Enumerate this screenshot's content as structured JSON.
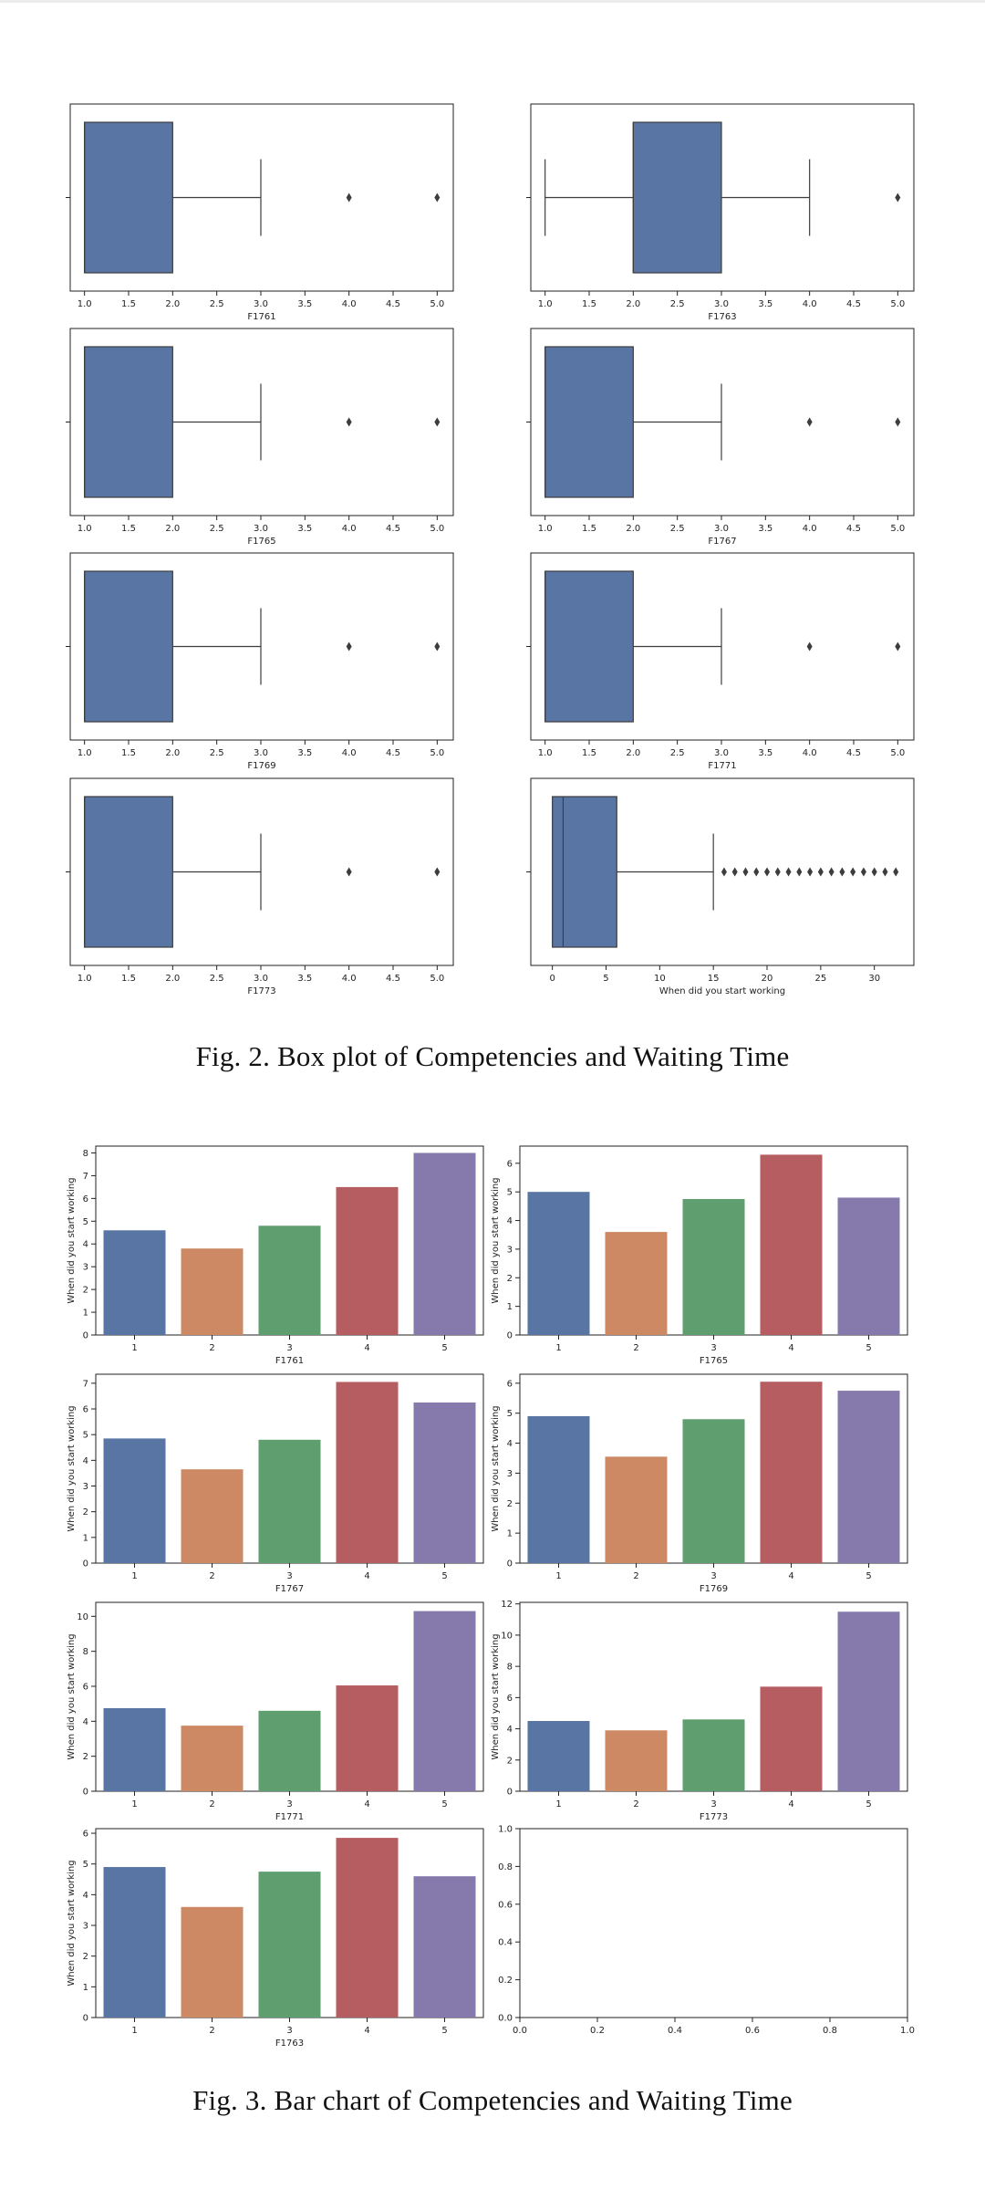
{
  "figure2": {
    "caption": "Fig. 2.  Box plot of Competencies and Waiting Time",
    "box_color": "#5975a4",
    "chart_data": [
      {
        "type": "box",
        "xlabel": "F1761",
        "xlim": [
          0.9,
          5.1
        ],
        "ticks": [
          "1.0",
          "1.5",
          "2.0",
          "2.5",
          "3.0",
          "3.5",
          "4.0",
          "4.5",
          "5.0"
        ],
        "q1": 1.0,
        "q3": 2.0,
        "median": 1.0,
        "whisker_low": 1.0,
        "whisker_high": 3.0,
        "outliers": [
          4,
          5
        ]
      },
      {
        "type": "box",
        "xlabel": "F1763",
        "xlim": [
          0.9,
          5.1
        ],
        "ticks": [
          "1.0",
          "1.5",
          "2.0",
          "2.5",
          "3.0",
          "3.5",
          "4.0",
          "4.5",
          "5.0"
        ],
        "q1": 2.0,
        "q3": 3.0,
        "median": 2.0,
        "whisker_low": 1.0,
        "whisker_high": 4.0,
        "outliers": [
          5
        ]
      },
      {
        "type": "box",
        "xlabel": "F1765",
        "xlim": [
          0.9,
          5.1
        ],
        "ticks": [
          "1.0",
          "1.5",
          "2.0",
          "2.5",
          "3.0",
          "3.5",
          "4.0",
          "4.5",
          "5.0"
        ],
        "q1": 1.0,
        "q3": 2.0,
        "median": 1.0,
        "whisker_low": 1.0,
        "whisker_high": 3.0,
        "outliers": [
          4,
          5
        ]
      },
      {
        "type": "box",
        "xlabel": "F1767",
        "xlim": [
          0.9,
          5.1
        ],
        "ticks": [
          "1.0",
          "1.5",
          "2.0",
          "2.5",
          "3.0",
          "3.5",
          "4.0",
          "4.5",
          "5.0"
        ],
        "q1": 1.0,
        "q3": 2.0,
        "median": 1.0,
        "whisker_low": 1.0,
        "whisker_high": 3.0,
        "outliers": [
          4,
          5
        ]
      },
      {
        "type": "box",
        "xlabel": "F1769",
        "xlim": [
          0.9,
          5.1
        ],
        "ticks": [
          "1.0",
          "1.5",
          "2.0",
          "2.5",
          "3.0",
          "3.5",
          "4.0",
          "4.5",
          "5.0"
        ],
        "q1": 1.0,
        "q3": 2.0,
        "median": 1.0,
        "whisker_low": 1.0,
        "whisker_high": 3.0,
        "outliers": [
          4,
          5
        ]
      },
      {
        "type": "box",
        "xlabel": "F1771",
        "xlim": [
          0.9,
          5.1
        ],
        "ticks": [
          "1.0",
          "1.5",
          "2.0",
          "2.5",
          "3.0",
          "3.5",
          "4.0",
          "4.5",
          "5.0"
        ],
        "q1": 1.0,
        "q3": 2.0,
        "median": 1.0,
        "whisker_low": 1.0,
        "whisker_high": 3.0,
        "outliers": [
          4,
          5
        ]
      },
      {
        "type": "box",
        "xlabel": "F1773",
        "xlim": [
          0.9,
          5.1
        ],
        "ticks": [
          "1.0",
          "1.5",
          "2.0",
          "2.5",
          "3.0",
          "3.5",
          "4.0",
          "4.5",
          "5.0"
        ],
        "q1": 1.0,
        "q3": 2.0,
        "median": 1.0,
        "whisker_low": 1.0,
        "whisker_high": 3.0,
        "outliers": [
          4,
          5
        ]
      },
      {
        "type": "box",
        "xlabel": "When did you start working",
        "xlim": [
          -1.5,
          33
        ],
        "tick_values": [
          0,
          5,
          10,
          15,
          20,
          25,
          30
        ],
        "ticks": [
          "0",
          "5",
          "10",
          "15",
          "20",
          "25",
          "30"
        ],
        "q1": 0,
        "q3": 6,
        "median": 1,
        "whisker_low": 0,
        "whisker_high": 15,
        "outliers": [
          16,
          17,
          18,
          19,
          20,
          21,
          22,
          23,
          24,
          25,
          26,
          27,
          28,
          29,
          30,
          31,
          32
        ]
      }
    ]
  },
  "figure3": {
    "caption": "Fig. 3.  Bar chart of Competencies and Waiting Time",
    "bar_colors": [
      "#5975a4",
      "#cc8963",
      "#5f9e6e",
      "#b55d60",
      "#857aab"
    ],
    "chart_data": [
      {
        "type": "bar",
        "xlabel": "F1761",
        "ylabel": "When did you start working",
        "categories": [
          "1",
          "2",
          "3",
          "4",
          "5"
        ],
        "values": [
          4.6,
          3.8,
          4.8,
          6.5,
          8.0
        ],
        "ylim": [
          0,
          8.3
        ],
        "yticks": [
          "0",
          "1",
          "2",
          "3",
          "4",
          "5",
          "6",
          "7",
          "8"
        ]
      },
      {
        "type": "bar",
        "xlabel": "F1765",
        "ylabel": "When did you start working",
        "categories": [
          "1",
          "2",
          "3",
          "4",
          "5"
        ],
        "values": [
          5.0,
          3.6,
          4.75,
          6.3,
          4.8
        ],
        "ylim": [
          0,
          6.6
        ],
        "yticks": [
          "0",
          "1",
          "2",
          "3",
          "4",
          "5",
          "6"
        ]
      },
      {
        "type": "bar",
        "xlabel": "F1767",
        "ylabel": "When did you start working",
        "categories": [
          "1",
          "2",
          "3",
          "4",
          "5"
        ],
        "values": [
          4.85,
          3.65,
          4.8,
          7.05,
          6.25
        ],
        "ylim": [
          0,
          7.35
        ],
        "yticks": [
          "0",
          "1",
          "2",
          "3",
          "4",
          "5",
          "6",
          "7"
        ]
      },
      {
        "type": "bar",
        "xlabel": "F1769",
        "ylabel": "When did you start working",
        "categories": [
          "1",
          "2",
          "3",
          "4",
          "5"
        ],
        "values": [
          4.9,
          3.55,
          4.8,
          6.05,
          5.75
        ],
        "ylim": [
          0,
          6.3
        ],
        "yticks": [
          "0",
          "1",
          "2",
          "3",
          "4",
          "5",
          "6"
        ]
      },
      {
        "type": "bar",
        "xlabel": "F1771",
        "ylabel": "When did you start working",
        "categories": [
          "1",
          "2",
          "3",
          "4",
          "5"
        ],
        "values": [
          4.75,
          3.75,
          4.6,
          6.05,
          10.3
        ],
        "ylim": [
          0,
          10.8
        ],
        "yticks": [
          "0",
          "2",
          "4",
          "6",
          "8",
          "10"
        ]
      },
      {
        "type": "bar",
        "xlabel": "F1773",
        "ylabel": "When did you start working",
        "categories": [
          "1",
          "2",
          "3",
          "4",
          "5"
        ],
        "values": [
          4.5,
          3.9,
          4.6,
          6.7,
          11.5
        ],
        "ylim": [
          0,
          12.1
        ],
        "yticks": [
          "0",
          "2",
          "4",
          "6",
          "8",
          "10",
          "12"
        ]
      },
      {
        "type": "bar",
        "xlabel": "F1763",
        "ylabel": "When did you start working",
        "categories": [
          "1",
          "2",
          "3",
          "4",
          "5"
        ],
        "values": [
          4.9,
          3.6,
          4.75,
          5.85,
          4.6
        ],
        "ylim": [
          0,
          6.15
        ],
        "yticks": [
          "0",
          "1",
          "2",
          "3",
          "4",
          "5",
          "6"
        ]
      },
      {
        "type": "empty",
        "xlabel": "",
        "ylabel": "",
        "xlim": [
          0,
          1
        ],
        "ylim": [
          0,
          1
        ],
        "xticks": [
          "0.0",
          "0.2",
          "0.4",
          "0.6",
          "0.8",
          "1.0"
        ],
        "yticks": [
          "0.0",
          "0.2",
          "0.4",
          "0.6",
          "0.8",
          "1.0"
        ]
      }
    ]
  }
}
